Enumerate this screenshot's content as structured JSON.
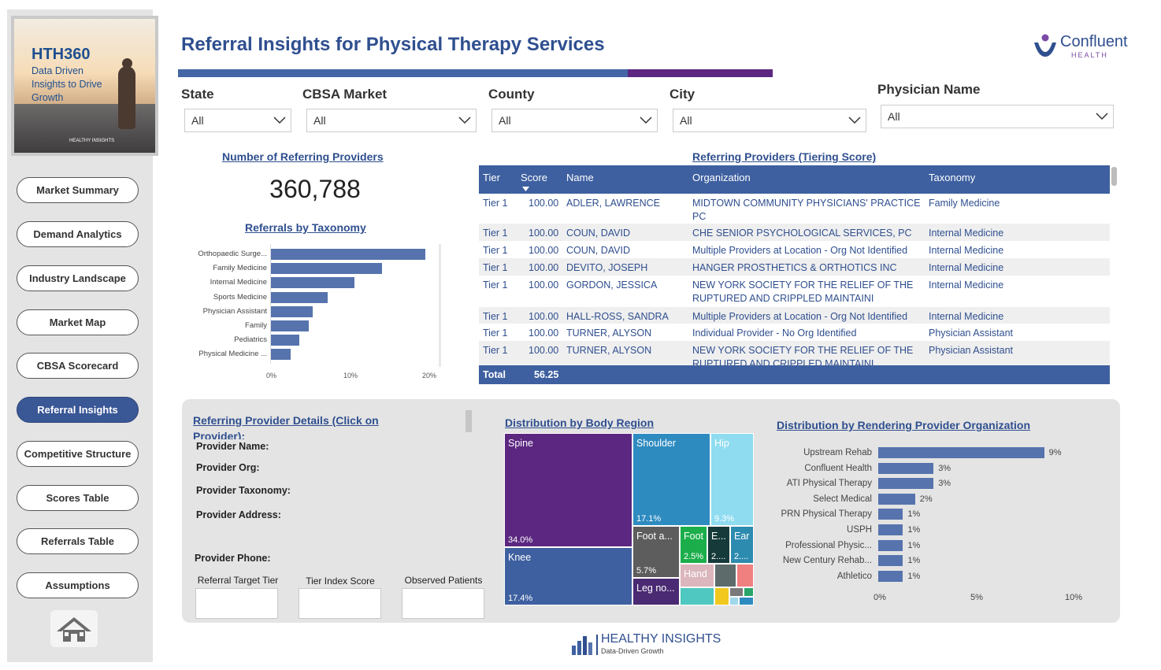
{
  "sidebar": {
    "promo": {
      "title": "HTH360",
      "subtitle": "Data Driven Insights to Drive Growth",
      "brand": "HEALTHY INSIGHTS"
    },
    "nav": [
      "Market Summary",
      "Demand Analytics",
      "Industry Landscape",
      "Market Map",
      "CBSA Scorecard",
      "Referral Insights",
      "Competitive Structure",
      "Scores Table",
      "Referrals Table",
      "Assumptions"
    ],
    "active": "Referral Insights"
  },
  "header": {
    "title": "Referral Insights for Physical Therapy Services",
    "logo_name": "Confluent",
    "logo_sub": "HEALTH"
  },
  "filters": [
    {
      "label": "State",
      "value": "All"
    },
    {
      "label": "CBSA Market",
      "value": "All"
    },
    {
      "label": "County",
      "value": "All"
    },
    {
      "label": "City",
      "value": "All"
    },
    {
      "label": "Physician Name",
      "value": "All"
    }
  ],
  "kpi": {
    "title": "Number of Referring Providers",
    "value": "360,788"
  },
  "taxonomy_chart": {
    "title": "Referrals by Taxonomy",
    "ticks": [
      "0%",
      "10%",
      "20%"
    ]
  },
  "chart_data": [
    {
      "type": "bar",
      "title": "Referrals by Taxonomy",
      "categories": [
        "Orthopaedic Surge...",
        "Family Medicine",
        "Internal Medicine",
        "Sports Medicine",
        "Physician Assistant",
        "Family",
        "Pediatrics",
        "Physical Medicine ..."
      ],
      "values": [
        19.6,
        14.1,
        10.6,
        7.2,
        5.3,
        4.8,
        3.6,
        2.5
      ],
      "unit": "%",
      "xlim": [
        0,
        20
      ]
    },
    {
      "type": "bar",
      "title": "Distribution by Rendering Provider Organization",
      "categories": [
        "Upstream Rehab",
        "Confluent Health",
        "ATI Physical Therapy",
        "Select Medical",
        "PRN Physical Therapy",
        "USPH",
        "Professional Physic...",
        "New Century Rehab...",
        "Athletico"
      ],
      "values": [
        9,
        3,
        3,
        2,
        1,
        1,
        1,
        1,
        1
      ],
      "labels": [
        "9%",
        "3%",
        "3%",
        "2%",
        "1%",
        "1%",
        "1%",
        "1%",
        "1%"
      ],
      "unit": "%",
      "xlim": [
        0,
        10
      ],
      "ticks": [
        "0%",
        "5%",
        "10%"
      ]
    }
  ],
  "table": {
    "title": "Referring Providers (Tiering Score)",
    "columns": [
      "Tier",
      "Score",
      "Name",
      "Organization",
      "Taxonomy"
    ],
    "rows": [
      {
        "tier": "Tier 1",
        "score": "100.00",
        "name": "ADLER, LAWRENCE",
        "org": "MIDTOWN COMMUNITY PHYSICIANS' PRACTICE PC",
        "tax": "Family Medicine"
      },
      {
        "tier": "Tier 1",
        "score": "100.00",
        "name": "COUN, DAVID",
        "org": "CHE SENIOR PSYCHOLOGICAL SERVICES, PC",
        "tax": "Internal Medicine"
      },
      {
        "tier": "Tier 1",
        "score": "100.00",
        "name": "COUN, DAVID",
        "org": "Multiple Providers at Location - Org Not Identified",
        "tax": "Internal Medicine"
      },
      {
        "tier": "Tier 1",
        "score": "100.00",
        "name": "DEVITO, JOSEPH",
        "org": "HANGER PROSTHETICS & ORTHOTICS INC",
        "tax": "Internal Medicine"
      },
      {
        "tier": "Tier 1",
        "score": "100.00",
        "name": "GORDON, JESSICA",
        "org": "NEW YORK SOCIETY FOR THE RELIEF OF THE RUPTURED AND CRIPPLED MAINTAINI",
        "tax": "Internal Medicine"
      },
      {
        "tier": "Tier 1",
        "score": "100.00",
        "name": "HALL-ROSS, SANDRA",
        "org": "Multiple Providers at Location - Org Not Identified",
        "tax": "Internal Medicine"
      },
      {
        "tier": "Tier 1",
        "score": "100.00",
        "name": "TURNER, ALYSON",
        "org": "Individual Provider - No Org Identified",
        "tax": "Physician Assistant"
      },
      {
        "tier": "Tier 1",
        "score": "100.00",
        "name": "TURNER, ALYSON",
        "org": "NEW YORK SOCIETY FOR THE RELIEF OF THE RUPTURED AND CRIPPLED MAINTAINI",
        "tax": "Physician Assistant"
      }
    ],
    "total_label": "Total",
    "total_score": "56.25"
  },
  "details": {
    "title": "Referring Provider Details (Click on Provider):",
    "labels": [
      "Provider Name:",
      "Provider Org:",
      "Provider Taxonomy:",
      "Provider Address:",
      "Provider Phone:"
    ],
    "boxes": [
      "Referral Target Tier",
      "Tier Index Score",
      "Observed Patients"
    ]
  },
  "body_region": {
    "title": "Distribution by Body Region",
    "tiles": [
      {
        "name": "Spine",
        "pct": "34.0%",
        "color": "#5b2780"
      },
      {
        "name": "Knee",
        "pct": "17.4%",
        "color": "#3e60a0"
      },
      {
        "name": "Shoulder",
        "pct": "17.1%",
        "color": "#2e8bc0"
      },
      {
        "name": "Hip",
        "pct": "9.3%",
        "color": "#8fdcf0"
      },
      {
        "name": "Foot a...",
        "pct": "5.7%",
        "color": "#5d5d5d"
      },
      {
        "name": "Leg no...",
        "pct": "",
        "color": "#4a2a72"
      },
      {
        "name": "Foot",
        "pct": "2.5%",
        "color": "#1bae4b"
      },
      {
        "name": "E...",
        "pct": "2....",
        "color": "#163a3a"
      },
      {
        "name": "Ear",
        "pct": "2....",
        "color": "#2e8bb0"
      },
      {
        "name": "Hand",
        "pct": "",
        "color": "#dbb6bd"
      }
    ]
  },
  "org_chart": {
    "title": "Distribution by Rendering Provider Organization"
  },
  "footer": {
    "brand": "HEALTHY INSIGHTS",
    "tagline": "Data-Driven Growth"
  }
}
